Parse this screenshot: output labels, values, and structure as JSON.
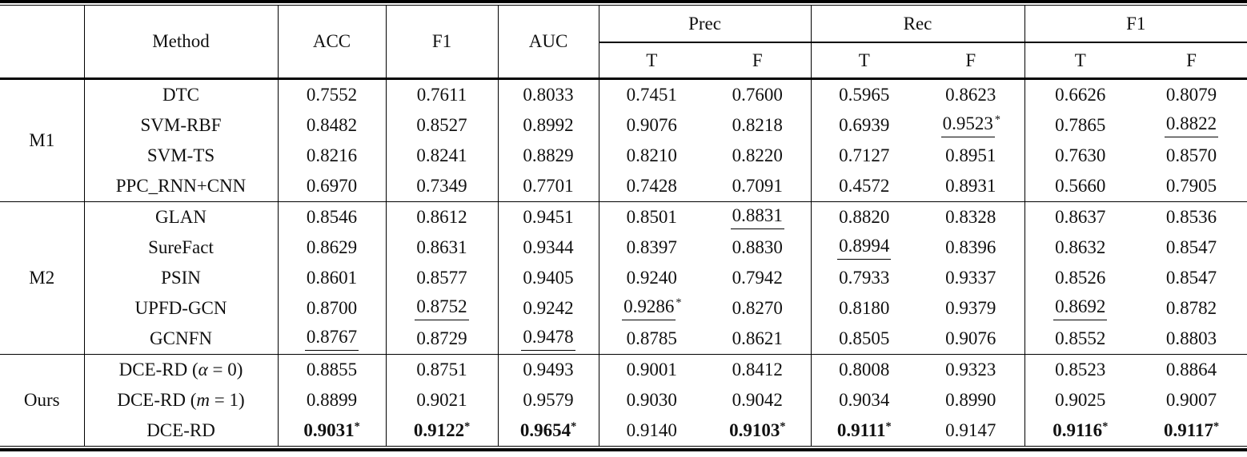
{
  "colors": {
    "text": "#111111",
    "background": "#ffffff",
    "rule": "#000000"
  },
  "tbl": {
    "header": {
      "corner": "",
      "method": "Method",
      "metrics": [
        "ACC",
        "F1",
        "AUC"
      ],
      "groups": [
        {
          "label": "Prec",
          "sub": [
            "T",
            "F"
          ]
        },
        {
          "label": "Rec",
          "sub": [
            "T",
            "F"
          ]
        },
        {
          "label": "F1",
          "sub": [
            "T",
            "F"
          ]
        }
      ]
    },
    "body": [
      {
        "group": "M1",
        "rows": [
          {
            "method": "DTC",
            "cells": [
              "0.7552",
              "0.7611",
              "0.8033",
              "0.7451",
              "0.7600",
              "0.5965",
              "0.8623",
              "0.6626",
              "0.8079"
            ]
          },
          {
            "method": "SVM-RBF",
            "cells": [
              "0.8482",
              "0.8527",
              "0.8992",
              "0.9076",
              "0.8218",
              "0.6939",
              {
                "v": "0.9523",
                "u": true,
                "s": true
              },
              "0.7865",
              {
                "v": "0.8822",
                "u": true
              }
            ]
          },
          {
            "method": "SVM-TS",
            "cells": [
              "0.8216",
              "0.8241",
              "0.8829",
              "0.8210",
              "0.8220",
              "0.7127",
              "0.8951",
              "0.7630",
              "0.8570"
            ]
          },
          {
            "method": "PPC_RNN+CNN",
            "cells": [
              "0.6970",
              "0.7349",
              "0.7701",
              "0.7428",
              "0.7091",
              "0.4572",
              "0.8931",
              "0.5660",
              "0.7905"
            ]
          }
        ]
      },
      {
        "group": "M2",
        "rows": [
          {
            "method": "GLAN",
            "cells": [
              "0.8546",
              "0.8612",
              "0.9451",
              "0.8501",
              {
                "v": "0.8831",
                "u": true
              },
              "0.8820",
              "0.8328",
              "0.8637",
              "0.8536"
            ]
          },
          {
            "method": "SureFact",
            "cells": [
              "0.8629",
              "0.8631",
              "0.9344",
              "0.8397",
              "0.8830",
              {
                "v": "0.8994",
                "u": true
              },
              "0.8396",
              "0.8632",
              "0.8547"
            ]
          },
          {
            "method": "PSIN",
            "cells": [
              "0.8601",
              "0.8577",
              "0.9405",
              "0.9240",
              "0.7942",
              "0.7933",
              "0.9337",
              "0.8526",
              "0.8547"
            ]
          },
          {
            "method": "UPFD-GCN",
            "cells": [
              "0.8700",
              {
                "v": "0.8752",
                "u": true
              },
              "0.9242",
              {
                "v": "0.9286",
                "u": true,
                "s": true
              },
              "0.8270",
              "0.8180",
              "0.9379",
              {
                "v": "0.8692",
                "u": true
              },
              "0.8782"
            ]
          },
          {
            "method": "GCNFN",
            "cells": [
              {
                "v": "0.8767",
                "u": true
              },
              "0.8729",
              {
                "v": "0.9478",
                "u": true
              },
              "0.8785",
              "0.8621",
              "0.8505",
              "0.9076",
              "0.8552",
              "0.8803"
            ]
          }
        ]
      },
      {
        "group": "Ours",
        "rows": [
          {
            "method": "DCE-RD (α = 0)",
            "cells": [
              "0.8855",
              "0.8751",
              "0.9493",
              "0.9001",
              "0.8412",
              "0.8008",
              "0.9323",
              "0.8523",
              "0.8864"
            ]
          },
          {
            "method": "DCE-RD (m = 1)",
            "cells": [
              "0.8899",
              "0.9021",
              "0.9579",
              "0.9030",
              "0.9042",
              "0.9034",
              "0.8990",
              "0.9025",
              "0.9007"
            ]
          },
          {
            "method": "DCE-RD",
            "cells": [
              {
                "v": "0.9031",
                "b": true,
                "s": true
              },
              {
                "v": "0.9122",
                "b": true,
                "s": true
              },
              {
                "v": "0.9654",
                "b": true,
                "s": true
              },
              "0.9140",
              {
                "v": "0.9103",
                "b": true,
                "s": true
              },
              {
                "v": "0.9111",
                "b": true,
                "s": true
              },
              "0.9147",
              {
                "v": "0.9116",
                "b": true,
                "s": true
              },
              {
                "v": "0.9117",
                "b": true,
                "s": true
              }
            ]
          }
        ]
      }
    ]
  }
}
